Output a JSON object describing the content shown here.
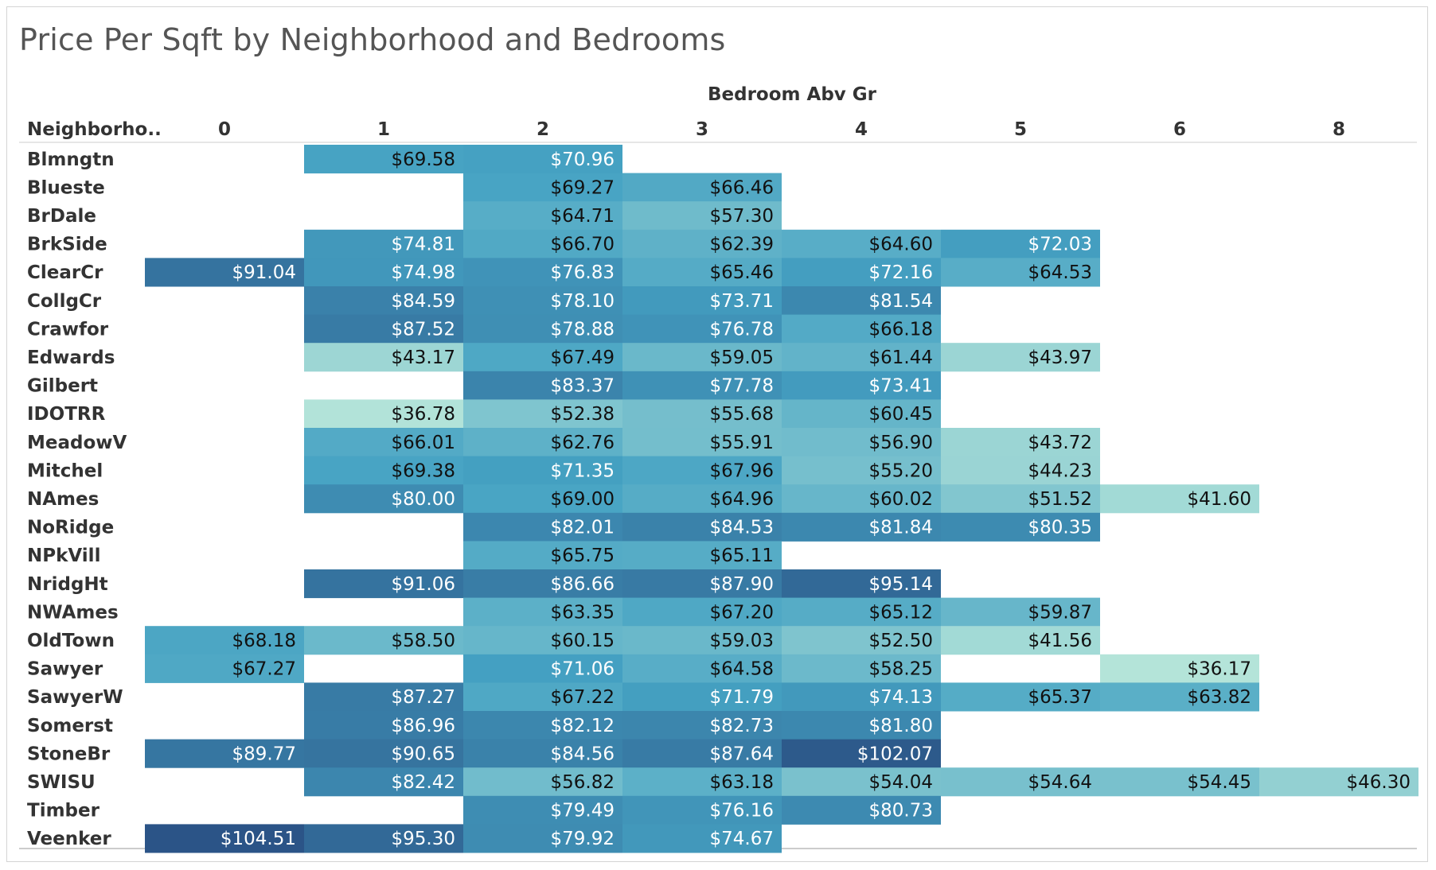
{
  "chart_data": {
    "type": "heatmap",
    "title": "Price Per Sqft by Neighborhood and Bedrooms",
    "column_header": "Bedroom Abv Gr",
    "row_header": "Neighborho..",
    "columns": [
      "0",
      "1",
      "2",
      "3",
      "4",
      "5",
      "6",
      "8"
    ],
    "rows": [
      {
        "name": "Blmngtn",
        "values": [
          null,
          69.58,
          70.96,
          null,
          null,
          null,
          null,
          null
        ]
      },
      {
        "name": "Blueste",
        "values": [
          null,
          null,
          69.27,
          66.46,
          null,
          null,
          null,
          null
        ]
      },
      {
        "name": "BrDale",
        "values": [
          null,
          null,
          64.71,
          57.3,
          null,
          null,
          null,
          null
        ]
      },
      {
        "name": "BrkSide",
        "values": [
          null,
          74.81,
          66.7,
          62.39,
          64.6,
          72.03,
          null,
          null
        ]
      },
      {
        "name": "ClearCr",
        "values": [
          91.04,
          74.98,
          76.83,
          65.46,
          72.16,
          64.53,
          null,
          null
        ]
      },
      {
        "name": "CollgCr",
        "values": [
          null,
          84.59,
          78.1,
          73.71,
          81.54,
          null,
          null,
          null
        ]
      },
      {
        "name": "Crawfor",
        "values": [
          null,
          87.52,
          78.88,
          76.78,
          66.18,
          null,
          null,
          null
        ]
      },
      {
        "name": "Edwards",
        "values": [
          null,
          43.17,
          67.49,
          59.05,
          61.44,
          43.97,
          null,
          null
        ]
      },
      {
        "name": "Gilbert",
        "values": [
          null,
          null,
          83.37,
          77.78,
          73.41,
          null,
          null,
          null
        ]
      },
      {
        "name": "IDOTRR",
        "values": [
          null,
          36.78,
          52.38,
          55.68,
          60.45,
          null,
          null,
          null
        ]
      },
      {
        "name": "MeadowV",
        "values": [
          null,
          66.01,
          62.76,
          55.91,
          56.9,
          43.72,
          null,
          null
        ]
      },
      {
        "name": "Mitchel",
        "values": [
          null,
          69.38,
          71.35,
          67.96,
          55.2,
          44.23,
          null,
          null
        ]
      },
      {
        "name": "NAmes",
        "values": [
          null,
          80.0,
          69.0,
          64.96,
          60.02,
          51.52,
          41.6,
          null
        ]
      },
      {
        "name": "NoRidge",
        "values": [
          null,
          null,
          82.01,
          84.53,
          81.84,
          80.35,
          null,
          null
        ]
      },
      {
        "name": "NPkVill",
        "values": [
          null,
          null,
          65.75,
          65.11,
          null,
          null,
          null,
          null
        ]
      },
      {
        "name": "NridgHt",
        "values": [
          null,
          91.06,
          86.66,
          87.9,
          95.14,
          null,
          null,
          null
        ]
      },
      {
        "name": "NWAmes",
        "values": [
          null,
          null,
          63.35,
          67.2,
          65.12,
          59.87,
          null,
          null
        ]
      },
      {
        "name": "OldTown",
        "values": [
          68.18,
          58.5,
          60.15,
          59.03,
          52.5,
          41.56,
          null,
          null
        ]
      },
      {
        "name": "Sawyer",
        "values": [
          67.27,
          null,
          71.06,
          64.58,
          58.25,
          null,
          36.17,
          null
        ]
      },
      {
        "name": "SawyerW",
        "values": [
          null,
          87.27,
          67.22,
          71.79,
          74.13,
          65.37,
          63.82,
          null
        ]
      },
      {
        "name": "Somerst",
        "values": [
          null,
          86.96,
          82.12,
          82.73,
          81.8,
          null,
          null,
          null
        ]
      },
      {
        "name": "StoneBr",
        "values": [
          89.77,
          90.65,
          84.56,
          87.64,
          102.07,
          null,
          null,
          null
        ]
      },
      {
        "name": "SWISU",
        "values": [
          null,
          82.42,
          56.82,
          63.18,
          54.04,
          54.64,
          54.45,
          46.3
        ]
      },
      {
        "name": "Timber",
        "values": [
          null,
          null,
          79.49,
          76.16,
          80.73,
          null,
          null,
          null
        ]
      },
      {
        "name": "Veenker",
        "values": [
          104.51,
          95.3,
          79.92,
          74.67,
          null,
          null,
          null,
          null
        ]
      }
    ],
    "value_prefix": "$",
    "color_range": [
      36.17,
      104.51
    ],
    "colors": {
      "low": "#b4e4d9",
      "mid": "#45a2c3",
      "high": "#2b5487",
      "text_dark": "#111111",
      "text_light": "#ffffff"
    }
  }
}
